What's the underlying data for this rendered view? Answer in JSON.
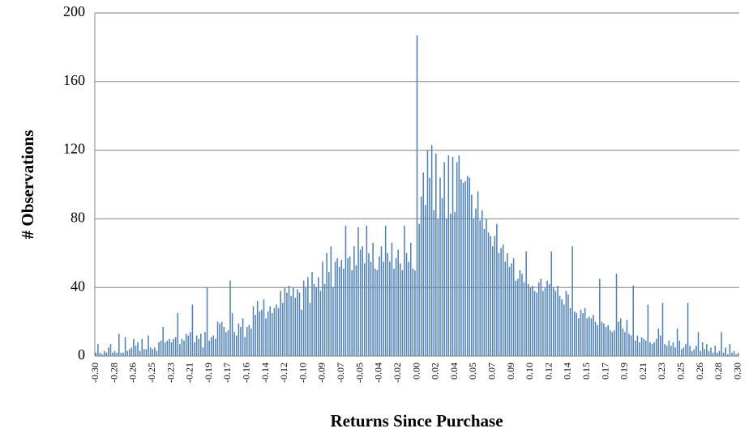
{
  "chart_data": {
    "type": "bar",
    "x_label": "Returns Since Purchase",
    "y_label": "# Observations",
    "color": "#4f81bd",
    "grid": true,
    "ylim": [
      0,
      200
    ],
    "yticks": [
      0,
      40,
      80,
      120,
      160,
      200
    ],
    "categories": [
      "-0.30",
      null,
      null,
      null,
      null,
      null,
      null,
      null,
      null,
      "-0.28",
      null,
      null,
      null,
      null,
      null,
      null,
      null,
      null,
      "-0.26",
      null,
      null,
      null,
      null,
      null,
      null,
      null,
      null,
      "-0.25",
      null,
      null,
      null,
      null,
      null,
      null,
      null,
      null,
      "-0.23",
      null,
      null,
      null,
      null,
      null,
      null,
      null,
      null,
      "-0.21",
      null,
      null,
      null,
      null,
      null,
      null,
      null,
      null,
      "-0.19",
      null,
      null,
      null,
      null,
      null,
      null,
      null,
      null,
      "-0.17",
      null,
      null,
      null,
      null,
      null,
      null,
      null,
      null,
      "-0.16",
      null,
      null,
      null,
      null,
      null,
      null,
      null,
      null,
      "-0.14",
      null,
      null,
      null,
      null,
      null,
      null,
      null,
      null,
      "-0.12",
      null,
      null,
      null,
      null,
      null,
      null,
      null,
      null,
      "-0.10",
      null,
      null,
      null,
      null,
      null,
      null,
      null,
      null,
      "-0.09",
      null,
      null,
      null,
      null,
      null,
      null,
      null,
      null,
      "-0.07",
      null,
      null,
      null,
      null,
      null,
      null,
      null,
      null,
      "-0.05",
      null,
      null,
      null,
      null,
      null,
      null,
      null,
      null,
      "-0.04",
      null,
      null,
      null,
      null,
      null,
      null,
      null,
      null,
      "-0.02",
      null,
      null,
      null,
      null,
      null,
      null,
      null,
      null,
      "0.00",
      null,
      null,
      null,
      null,
      null,
      null,
      null,
      null,
      "0.02",
      null,
      null,
      null,
      null,
      null,
      null,
      null,
      null,
      "0.04",
      null,
      null,
      null,
      null,
      null,
      null,
      null,
      null,
      "0.05",
      null,
      null,
      null,
      null,
      null,
      null,
      null,
      null,
      "0.07",
      null,
      null,
      null,
      null,
      null,
      null,
      null,
      null,
      "0.09",
      null,
      null,
      null,
      null,
      null,
      null,
      null,
      null,
      "0.10",
      null,
      null,
      null,
      null,
      null,
      null,
      null,
      null,
      "0.12",
      null,
      null,
      null,
      null,
      null,
      null,
      null,
      null,
      "0.14",
      null,
      null,
      null,
      null,
      null,
      null,
      null,
      null,
      "0.15",
      null,
      null,
      null,
      null,
      null,
      null,
      null,
      null,
      "0.17",
      null,
      null,
      null,
      null,
      null,
      null,
      null,
      null,
      "0.19",
      null,
      null,
      null,
      null,
      null,
      null,
      null,
      null,
      "0.21",
      null,
      null,
      null,
      null,
      null,
      null,
      null,
      null,
      "0.23",
      null,
      null,
      null,
      null,
      null,
      null,
      null,
      null,
      "0.25",
      null,
      null,
      null,
      null,
      null,
      null,
      null,
      null,
      "0.26",
      null,
      null,
      null,
      null,
      null,
      null,
      null,
      null,
      "0.28",
      null,
      null,
      null,
      null,
      null,
      null,
      null,
      null,
      "0.30"
    ],
    "values": [
      2,
      7,
      2,
      1,
      3,
      2,
      5,
      7,
      2,
      3,
      2,
      13,
      2,
      2,
      11,
      3,
      4,
      5,
      10,
      6,
      8,
      3,
      10,
      4,
      4,
      12,
      5,
      4,
      5,
      3,
      8,
      9,
      17,
      8,
      9,
      10,
      8,
      10,
      11,
      25,
      7,
      10,
      9,
      13,
      12,
      14,
      30,
      8,
      12,
      10,
      13,
      5,
      14,
      40,
      9,
      11,
      12,
      10,
      20,
      19,
      20,
      17,
      14,
      15,
      44,
      25,
      14,
      12,
      19,
      17,
      22,
      11,
      17,
      18,
      16,
      29,
      24,
      32,
      26,
      27,
      33,
      22,
      26,
      29,
      25,
      28,
      30,
      28,
      38,
      31,
      40,
      37,
      41,
      35,
      40,
      34,
      39,
      37,
      27,
      44,
      40,
      46,
      31,
      49,
      42,
      40,
      46,
      38,
      55,
      42,
      60,
      49,
      64,
      40,
      55,
      57,
      52,
      56,
      51,
      76,
      57,
      58,
      50,
      64,
      53,
      75,
      62,
      64,
      54,
      76,
      60,
      55,
      66,
      51,
      50,
      58,
      64,
      55,
      76,
      60,
      55,
      66,
      51,
      57,
      62,
      54,
      50,
      76,
      60,
      55,
      66,
      51,
      50,
      187,
      77,
      93,
      107,
      88,
      120,
      104,
      123,
      85,
      118,
      80,
      104,
      92,
      113,
      80,
      117,
      83,
      116,
      84,
      113,
      117,
      103,
      101,
      102,
      105,
      104,
      94,
      80,
      86,
      96,
      79,
      85,
      74,
      80,
      72,
      70,
      64,
      70,
      77,
      60,
      63,
      65,
      55,
      60,
      52,
      54,
      57,
      44,
      45,
      50,
      48,
      43,
      61,
      42,
      40,
      41,
      38,
      37,
      43,
      45,
      38,
      40,
      44,
      42,
      61,
      40,
      38,
      41,
      35,
      33,
      30,
      38,
      36,
      28,
      64,
      26,
      25,
      22,
      27,
      25,
      28,
      22,
      23,
      22,
      24,
      20,
      18,
      45,
      20,
      19,
      17,
      18,
      15,
      14,
      15,
      48,
      20,
      22,
      16,
      14,
      21,
      13,
      12,
      41,
      9,
      12,
      8,
      11,
      10,
      9,
      30,
      8,
      7,
      8,
      10,
      16,
      12,
      31,
      7,
      6,
      9,
      6,
      8,
      5,
      16,
      9,
      4,
      5,
      7,
      31,
      6,
      3,
      4,
      6,
      14,
      3,
      8,
      4,
      7,
      3,
      5,
      2,
      6,
      2,
      3,
      14,
      2,
      5,
      1,
      7,
      2,
      3,
      1,
      2
    ]
  }
}
